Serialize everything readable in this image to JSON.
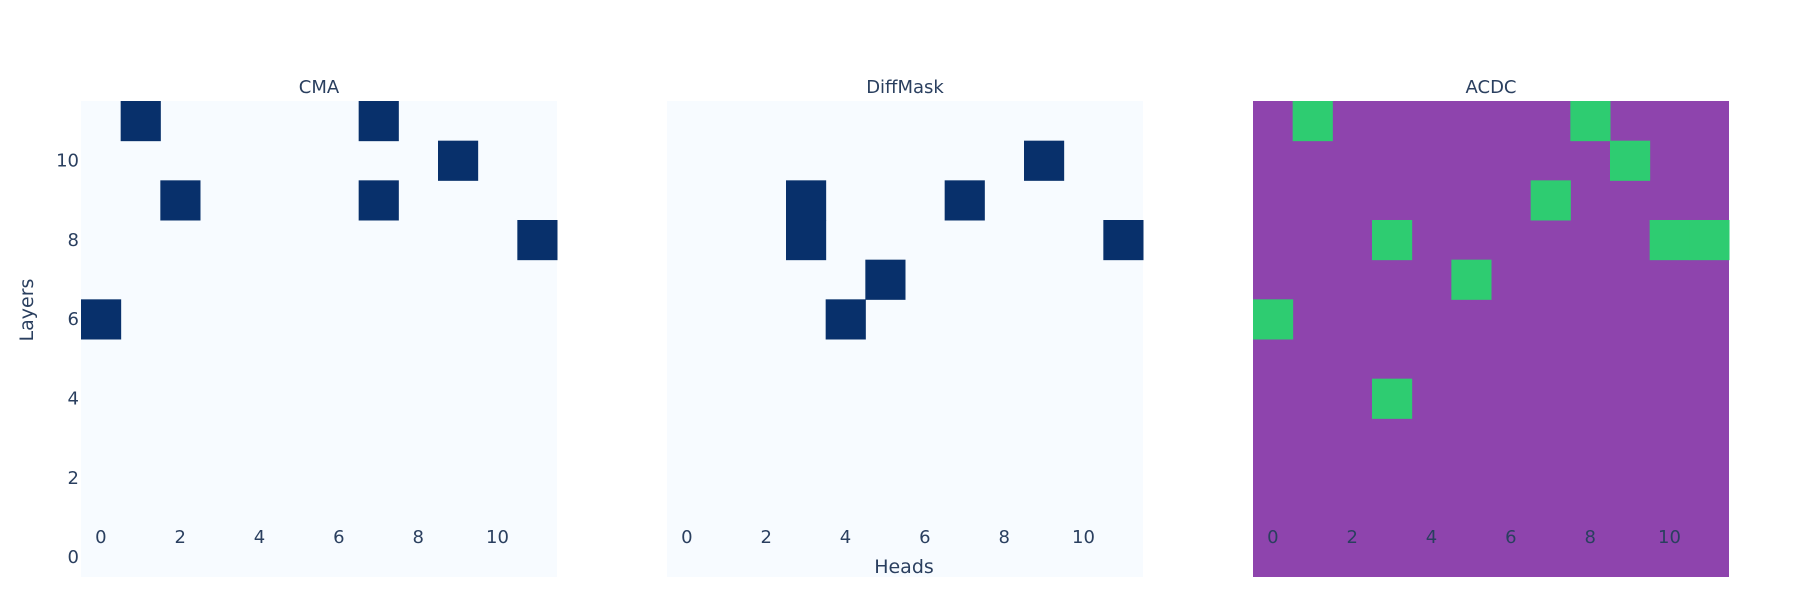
{
  "chart_data": [
    {
      "type": "heatmap",
      "title": "CMA",
      "x_ticks": [
        0,
        2,
        4,
        6,
        8,
        10
      ],
      "y_ticks": [
        0,
        2,
        4,
        6,
        8,
        10
      ],
      "n_heads": 12,
      "n_layers": 12,
      "background_color": "#f7fbff",
      "highlight_color": "#08306b",
      "highlighted_cells": [
        {
          "layer": 11,
          "head": 1
        },
        {
          "layer": 11,
          "head": 7
        },
        {
          "layer": 10,
          "head": 9
        },
        {
          "layer": 9,
          "head": 2
        },
        {
          "layer": 9,
          "head": 7
        },
        {
          "layer": 8,
          "head": 11
        },
        {
          "layer": 6,
          "head": 0
        }
      ]
    },
    {
      "type": "heatmap",
      "title": "DiffMask",
      "x_ticks": [
        0,
        2,
        4,
        6,
        8,
        10
      ],
      "y_ticks": [],
      "n_heads": 12,
      "n_layers": 12,
      "background_color": "#f7fbff",
      "highlight_color": "#08306b",
      "highlighted_cells": [
        {
          "layer": 10,
          "head": 9
        },
        {
          "layer": 9,
          "head": 3
        },
        {
          "layer": 9,
          "head": 7
        },
        {
          "layer": 8,
          "head": 3
        },
        {
          "layer": 8,
          "head": 11
        },
        {
          "layer": 7,
          "head": 5
        },
        {
          "layer": 6,
          "head": 4
        }
      ]
    },
    {
      "type": "heatmap",
      "title": "ACDC",
      "x_ticks": [
        0,
        2,
        4,
        6,
        8,
        10
      ],
      "y_ticks": [],
      "n_heads": 12,
      "n_layers": 12,
      "background_color": "#8e44ad",
      "highlight_color": "#2ecc71",
      "highlighted_cells": [
        {
          "layer": 11,
          "head": 1
        },
        {
          "layer": 11,
          "head": 8
        },
        {
          "layer": 10,
          "head": 9
        },
        {
          "layer": 9,
          "head": 7
        },
        {
          "layer": 8,
          "head": 3
        },
        {
          "layer": 8,
          "head": 10
        },
        {
          "layer": 8,
          "head": 11
        },
        {
          "layer": 7,
          "head": 5
        },
        {
          "layer": 6,
          "head": 0
        },
        {
          "layer": 4,
          "head": 3
        }
      ]
    }
  ],
  "xlabel": "Heads",
  "ylabel": "Layers"
}
